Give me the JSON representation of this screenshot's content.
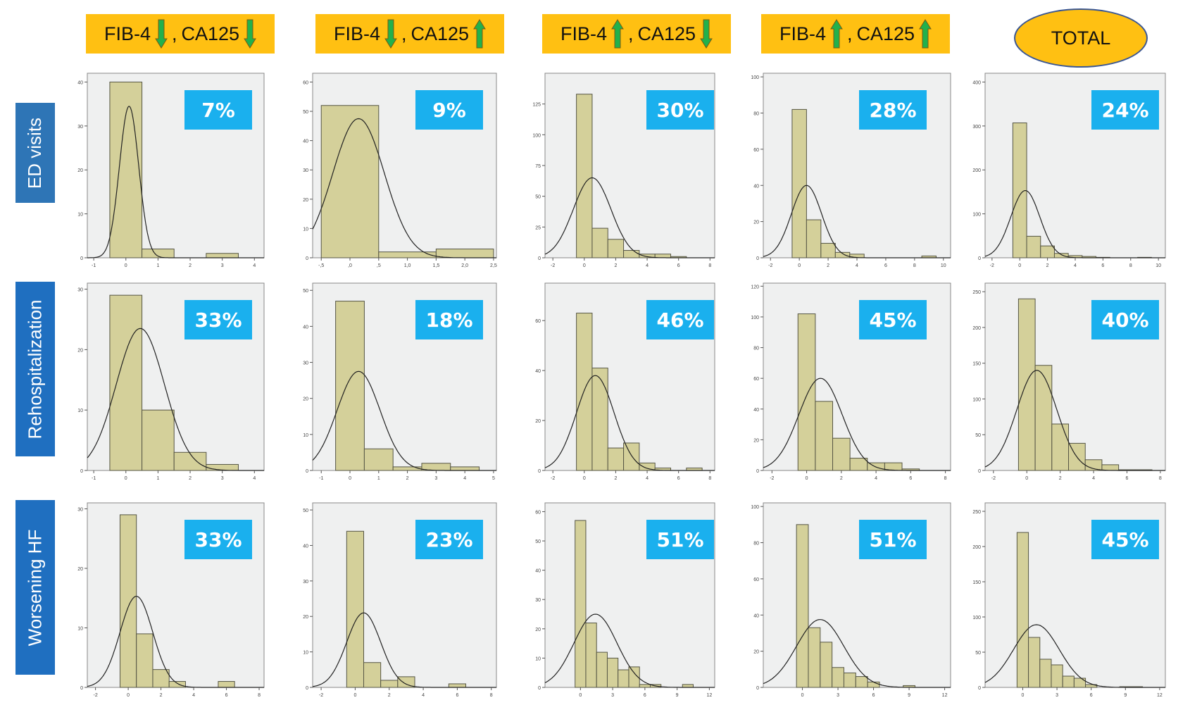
{
  "columns": [
    {
      "label_a": "FIB-4",
      "dir_a": "down",
      "sep": ",",
      "label_b": "CA125",
      "dir_b": "down"
    },
    {
      "label_a": "FIB-4",
      "dir_a": "down",
      "sep": ",",
      "label_b": "CA125",
      "dir_b": "up"
    },
    {
      "label_a": "FIB-4",
      "dir_a": "up",
      "sep": ",",
      "label_b": "CA125",
      "dir_b": "down"
    },
    {
      "label_a": "FIB-4",
      "dir_a": "up",
      "sep": ",",
      "label_b": "CA125",
      "dir_b": "up"
    },
    {
      "total_label": "TOTAL"
    }
  ],
  "rows": [
    {
      "label": "ED visits"
    },
    {
      "label": "Rehospitalization"
    },
    {
      "label": "Worsening HF"
    }
  ],
  "colors": {
    "header_bg": "#FFC012",
    "arrow_fill": "#22B14C",
    "arrow_stroke": "#7A5A10",
    "row_label_bg": "#1F6FC0",
    "badge_bg": "#1AB0EE",
    "bar_fill": "#D4D09A",
    "bar_stroke": "#555544",
    "plot_bg": "#EFF0F0"
  },
  "chart_data": [
    {
      "type": "bar",
      "row": "ED visits",
      "group": "FIB-4 down, CA125 down",
      "badge": "7%",
      "bin_start": -0.5,
      "bin_width": 1,
      "values": [
        40,
        2,
        0,
        1
      ],
      "xlim": [
        -1.2,
        4.3
      ],
      "xticks": [
        "-1",
        "0",
        "1",
        "2",
        "3",
        "4"
      ],
      "xtick_values": [
        -1,
        0,
        1,
        2,
        3,
        4
      ],
      "ylim": [
        0,
        42
      ],
      "yticks": [
        0,
        10,
        20,
        30,
        40
      ],
      "normal_curve": {
        "mean": 0.1,
        "sd": 0.3,
        "peak": 34.5
      }
    },
    {
      "type": "bar",
      "row": "ED visits",
      "group": "FIB-4 down, CA125 up",
      "badge": "9%",
      "bin_start": -0.5,
      "bin_width": 1,
      "values": [
        52,
        2,
        3
      ],
      "xlim": [
        -0.65,
        2.55
      ],
      "xticks": [
        "-,5",
        ",0",
        ",5",
        "1,0",
        "1,5",
        "2,0",
        "2,5"
      ],
      "xtick_values": [
        -0.5,
        0,
        0.5,
        1,
        1.5,
        2,
        2.5
      ],
      "ylim": [
        0,
        63
      ],
      "yticks": [
        0,
        10,
        20,
        30,
        40,
        50,
        60
      ],
      "normal_curve": {
        "mean": 0.15,
        "sd": 0.45,
        "peak": 47.5
      }
    },
    {
      "type": "bar",
      "row": "ED visits",
      "group": "FIB-4 up, CA125 down",
      "badge": "30%",
      "bin_start": -0.5,
      "bin_width": 1,
      "values": [
        133,
        24,
        15,
        6,
        3,
        3,
        1
      ],
      "xlim": [
        -2.5,
        8.3
      ],
      "xticks": [
        "-2",
        "0",
        "2",
        "4",
        "6",
        "8"
      ],
      "xtick_values": [
        -2,
        0,
        2,
        4,
        6,
        8
      ],
      "ylim": [
        0,
        150
      ],
      "yticks": [
        0,
        25,
        50,
        75,
        100,
        125
      ],
      "normal_curve": {
        "mean": 0.5,
        "sd": 1.2,
        "peak": 65
      }
    },
    {
      "type": "bar",
      "row": "ED visits",
      "group": "FIB-4 up, CA125 up",
      "badge": "28%",
      "bin_start": -0.5,
      "bin_width": 1,
      "values": [
        82,
        21,
        8,
        3,
        2,
        0,
        0,
        0,
        0,
        1
      ],
      "xlim": [
        -2.5,
        10.5
      ],
      "xticks": [
        "-2",
        "0",
        "2",
        "4",
        "6",
        "8",
        "10"
      ],
      "xtick_values": [
        -2,
        0,
        2,
        4,
        6,
        8,
        10
      ],
      "ylim": [
        0,
        102
      ],
      "yticks": [
        0,
        20,
        40,
        60,
        80,
        100
      ],
      "normal_curve": {
        "mean": 0.5,
        "sd": 1.05,
        "peak": 40
      }
    },
    {
      "type": "bar",
      "row": "ED visits",
      "group": "TOTAL",
      "badge": "24%",
      "bin_start": -0.5,
      "bin_width": 1,
      "values": [
        307,
        49,
        27,
        10,
        5,
        3,
        1,
        0,
        0,
        1
      ],
      "xlim": [
        -2.5,
        10.5
      ],
      "xticks": [
        "-2",
        "0",
        "2",
        "4",
        "6",
        "8",
        "10"
      ],
      "xtick_values": [
        -2,
        0,
        2,
        4,
        6,
        8,
        10
      ],
      "ylim": [
        0,
        420
      ],
      "yticks": [
        0,
        100,
        200,
        300,
        400
      ],
      "normal_curve": {
        "mean": 0.4,
        "sd": 1.05,
        "peak": 153
      }
    },
    {
      "type": "bar",
      "row": "Rehospitalization",
      "group": "FIB-4 down, CA125 down",
      "badge": "33%",
      "bin_start": -0.5,
      "bin_width": 1,
      "values": [
        29,
        10,
        3,
        1
      ],
      "xlim": [
        -1.2,
        4.3
      ],
      "xticks": [
        "-1",
        "0",
        "1",
        "2",
        "3",
        "4"
      ],
      "xtick_values": [
        -1,
        0,
        1,
        2,
        3,
        4
      ],
      "ylim": [
        0,
        31
      ],
      "yticks": [
        0,
        10,
        20,
        30
      ],
      "normal_curve": {
        "mean": 0.45,
        "sd": 0.75,
        "peak": 23.5
      }
    },
    {
      "type": "bar",
      "row": "Rehospitalization",
      "group": "FIB-4 down, CA125 up",
      "badge": "18%",
      "bin_start": -0.5,
      "bin_width": 1,
      "values": [
        47,
        6,
        1,
        2,
        1
      ],
      "xlim": [
        -1.3,
        5.1
      ],
      "xticks": [
        "-1",
        "0",
        "1",
        "2",
        "3",
        "4",
        "5"
      ],
      "xtick_values": [
        -1,
        0,
        1,
        2,
        3,
        4,
        5
      ],
      "ylim": [
        0,
        52
      ],
      "yticks": [
        0,
        10,
        20,
        30,
        40,
        50
      ],
      "normal_curve": {
        "mean": 0.3,
        "sd": 0.75,
        "peak": 27.5
      }
    },
    {
      "type": "bar",
      "row": "Rehospitalization",
      "group": "FIB-4 up, CA125 down",
      "badge": "46%",
      "bin_start": -0.5,
      "bin_width": 1,
      "values": [
        63,
        41,
        9,
        11,
        3,
        1,
        0,
        1
      ],
      "xlim": [
        -2.5,
        8.3
      ],
      "xticks": [
        "-2",
        "0",
        "2",
        "4",
        "6",
        "8"
      ],
      "xtick_values": [
        -2,
        0,
        2,
        4,
        6,
        8
      ],
      "ylim": [
        0,
        75
      ],
      "yticks": [
        0,
        20,
        40,
        60
      ],
      "normal_curve": {
        "mean": 0.7,
        "sd": 1.2,
        "peak": 38
      }
    },
    {
      "type": "bar",
      "row": "Rehospitalization",
      "group": "FIB-4 up, CA125 up",
      "badge": "45%",
      "bin_start": -0.5,
      "bin_width": 1,
      "values": [
        102,
        45,
        21,
        8,
        5,
        5,
        1
      ],
      "xlim": [
        -2.5,
        8.3
      ],
      "xticks": [
        "-2",
        "0",
        "2",
        "4",
        "6",
        "8"
      ],
      "xtick_values": [
        -2,
        0,
        2,
        4,
        6,
        8
      ],
      "ylim": [
        0,
        122
      ],
      "yticks": [
        0,
        20,
        40,
        60,
        80,
        100,
        120
      ],
      "normal_curve": {
        "mean": 0.8,
        "sd": 1.25,
        "peak": 60
      }
    },
    {
      "type": "bar",
      "row": "Rehospitalization",
      "group": "TOTAL",
      "badge": "40%",
      "bin_start": -0.5,
      "bin_width": 1,
      "values": [
        240,
        147,
        65,
        38,
        15,
        8,
        1,
        1
      ],
      "xlim": [
        -2.5,
        8.3
      ],
      "xticks": [
        "-2",
        "0",
        "2",
        "4",
        "6",
        "8"
      ],
      "xtick_values": [
        -2,
        0,
        2,
        4,
        6,
        8
      ],
      "ylim": [
        0,
        262
      ],
      "yticks": [
        0,
        50,
        100,
        150,
        200,
        250
      ],
      "normal_curve": {
        "mean": 0.6,
        "sd": 1.2,
        "peak": 140
      }
    },
    {
      "type": "bar",
      "row": "Worsening HF",
      "group": "FIB-4 down, CA125 down",
      "badge": "33%",
      "bin_start": -0.5,
      "bin_width": 1,
      "values": [
        29,
        9,
        3,
        1,
        0,
        0,
        1
      ],
      "xlim": [
        -2.5,
        8.3
      ],
      "xticks": [
        "-2",
        "0",
        "2",
        "4",
        "6",
        "8"
      ],
      "xtick_values": [
        -2,
        0,
        2,
        4,
        6,
        8
      ],
      "ylim": [
        0,
        31
      ],
      "yticks": [
        0,
        10,
        20,
        30
      ],
      "normal_curve": {
        "mean": 0.5,
        "sd": 1.0,
        "peak": 15.3
      }
    },
    {
      "type": "bar",
      "row": "Worsening HF",
      "group": "FIB-4 down, CA125 up",
      "badge": "23%",
      "bin_start": -0.5,
      "bin_width": 1,
      "values": [
        44,
        7,
        2,
        3,
        0,
        0,
        1
      ],
      "xlim": [
        -2.5,
        8.3
      ],
      "xticks": [
        "-2",
        "0",
        "2",
        "4",
        "6",
        "8"
      ],
      "xtick_values": [
        -2,
        0,
        2,
        4,
        6,
        8
      ],
      "ylim": [
        0,
        52
      ],
      "yticks": [
        0,
        10,
        20,
        30,
        40,
        50
      ],
      "normal_curve": {
        "mean": 0.5,
        "sd": 1.0,
        "peak": 21
      }
    },
    {
      "type": "bar",
      "row": "Worsening HF",
      "group": "FIB-4 up, CA125 down",
      "badge": "51%",
      "bin_start": -0.5,
      "bin_width": 1,
      "values": [
        57,
        22,
        12,
        10,
        6,
        7,
        1,
        1,
        0,
        0,
        1
      ],
      "xlim": [
        -3.3,
        12.5
      ],
      "xticks": [
        "0",
        "3",
        "6",
        "9",
        "12"
      ],
      "xtick_values": [
        0,
        3,
        6,
        9,
        12
      ],
      "ylim": [
        0,
        63
      ],
      "yticks": [
        0,
        10,
        20,
        30,
        40,
        50,
        60
      ],
      "normal_curve": {
        "mean": 1.4,
        "sd": 2.0,
        "peak": 25
      }
    },
    {
      "type": "bar",
      "row": "Worsening HF",
      "group": "FIB-4 up, CA125 up",
      "badge": "51%",
      "bin_start": -0.5,
      "bin_width": 1,
      "values": [
        90,
        33,
        25,
        11,
        8,
        6,
        3,
        0,
        0,
        1
      ],
      "xlim": [
        -3.3,
        12.5
      ],
      "xticks": [
        "0",
        "3",
        "6",
        "9",
        "12"
      ],
      "xtick_values": [
        0,
        3,
        6,
        9,
        12
      ],
      "ylim": [
        0,
        102
      ],
      "yticks": [
        0,
        20,
        40,
        60,
        80,
        100
      ],
      "normal_curve": {
        "mean": 1.5,
        "sd": 2.0,
        "peak": 37.5
      }
    },
    {
      "type": "bar",
      "row": "Worsening HF",
      "group": "TOTAL",
      "badge": "45%",
      "bin_start": -0.5,
      "bin_width": 1,
      "values": [
        220,
        71,
        40,
        32,
        16,
        13,
        4,
        0,
        0,
        1,
        1
      ],
      "xlim": [
        -3.3,
        12.5
      ],
      "xticks": [
        "0",
        "3",
        "6",
        "9",
        "12"
      ],
      "xtick_values": [
        0,
        3,
        6,
        9,
        12
      ],
      "ylim": [
        0,
        262
      ],
      "yticks": [
        0,
        50,
        100,
        150,
        200,
        250
      ],
      "normal_curve": {
        "mean": 1.2,
        "sd": 2.0,
        "peak": 89
      }
    }
  ]
}
